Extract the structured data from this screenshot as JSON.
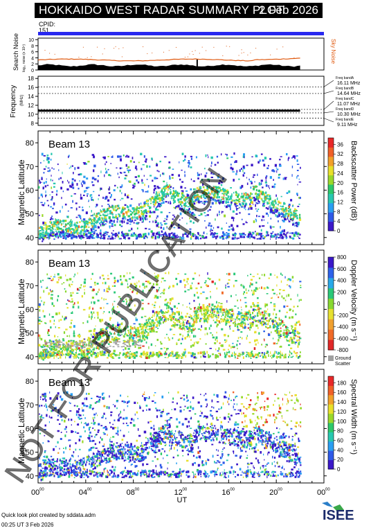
{
  "header": {
    "title": "HOKKAIDO WEST RADAR SUMMARY PLOT",
    "date": "2 Feb 2026",
    "cpid_label": "CPID:",
    "cpid_value": "151"
  },
  "noise_panel": {
    "ylabel": "Search Noise",
    "ylabel_sub": "log₁₀ noise (x 10⁴)",
    "right_label": "Sky Noise",
    "yticks": [
      "0",
      "2",
      "4",
      "6",
      "8",
      "10"
    ]
  },
  "freq_panel": {
    "ylabel": "Frequency",
    "ylabel_sub": "(MHz)",
    "yticks": [
      "8",
      "10",
      "12",
      "14",
      "16",
      "18"
    ],
    "bands": [
      {
        "label": "Freq bandA",
        "value": "16.11 MHz"
      },
      {
        "label": "Freq bandB",
        "value": "14.64 MHz"
      },
      {
        "label": "Freq bandC",
        "value": "11.07 MHz"
      },
      {
        "label": "Freq bandD",
        "value": "10.30 MHz"
      },
      {
        "label": "Freq bandE",
        "value": "9.11 MHz"
      }
    ]
  },
  "panels": [
    {
      "beam": "Beam 13",
      "ylabel": "Magnetic Latitude",
      "cbar_label": "Backscatter Power (dB)",
      "cbar_ticks": [
        "0",
        "4",
        "8",
        "12",
        "16",
        "20",
        "24",
        "28",
        "32",
        "36"
      ],
      "yticks": [
        "40",
        "50",
        "60",
        "70",
        "80"
      ]
    },
    {
      "beam": "Beam 13",
      "ylabel": "Magnetic Latitude",
      "cbar_label": "Doppler Velocity (m s⁻¹)",
      "cbar_ticks": [
        "800",
        "600",
        "400",
        "200",
        "0",
        "-200",
        "-400",
        "-600",
        "-800"
      ],
      "ground_label": "Ground",
      "ground_label2": "Scatter",
      "yticks": [
        "40",
        "50",
        "60",
        "70",
        "80"
      ]
    },
    {
      "beam": "Beam 13",
      "ylabel": "Magnetic Latitude",
      "cbar_label": "Spectral Width (m s⁻¹)",
      "cbar_ticks": [
        "0",
        "20",
        "40",
        "60",
        "80",
        "100",
        "120",
        "140",
        "160",
        "180"
      ],
      "yticks": [
        "40",
        "50",
        "60",
        "70",
        "80"
      ]
    }
  ],
  "xaxis": {
    "label": "UT",
    "ticks": [
      "00",
      "04",
      "08",
      "12",
      "16",
      "20",
      "00"
    ],
    "tick_sup": "00"
  },
  "watermark": "NOT FOR PUBLICATION",
  "footer": {
    "credit": "Quick look plot created by sddata.adm",
    "time": "00:25 UT  3 Feb 2026"
  },
  "logo_text": "ISEE",
  "colors": {
    "cpid_bar": "#2828f0",
    "noise_search": "#000000",
    "noise_sky": "#e05a10",
    "power_scale": [
      "#3b18c8",
      "#2f5ae8",
      "#2a9ef2",
      "#28c8b0",
      "#2cc86a",
      "#9ad82a",
      "#e8e02a",
      "#f2a02a",
      "#f06028",
      "#e82828"
    ],
    "velocity_scale": [
      "#3a18c8",
      "#2e62ea",
      "#28a8e8",
      "#2ac878",
      "#88d830",
      "#e6e030",
      "#f0a030",
      "#f06a28",
      "#e02828"
    ],
    "width_scale": [
      "#3b18c8",
      "#2f5ae8",
      "#2a9ef2",
      "#28c8b0",
      "#2cc86a",
      "#9ad82a",
      "#e8e02a",
      "#f2a02a",
      "#f06028",
      "#e82828"
    ],
    "ground_scatter": "#a0a0a0"
  },
  "chart_data": {
    "type": "heatmap",
    "title": "HOKKAIDO WEST RADAR SUMMARY PLOT",
    "xlabel": "UT",
    "xlim_hours": [
      0,
      24
    ],
    "ylim_mlat": [
      37,
      85
    ],
    "series": [
      {
        "name": "Backscatter Power (dB)",
        "range": [
          0,
          36
        ]
      },
      {
        "name": "Doppler Velocity (m s⁻¹)",
        "range": [
          -800,
          800
        ]
      },
      {
        "name": "Spectral Width (m s⁻¹)",
        "range": [
          0,
          180
        ]
      }
    ],
    "frequency_bands_mhz": [
      16.11,
      14.64,
      11.07,
      10.3,
      9.11
    ]
  }
}
